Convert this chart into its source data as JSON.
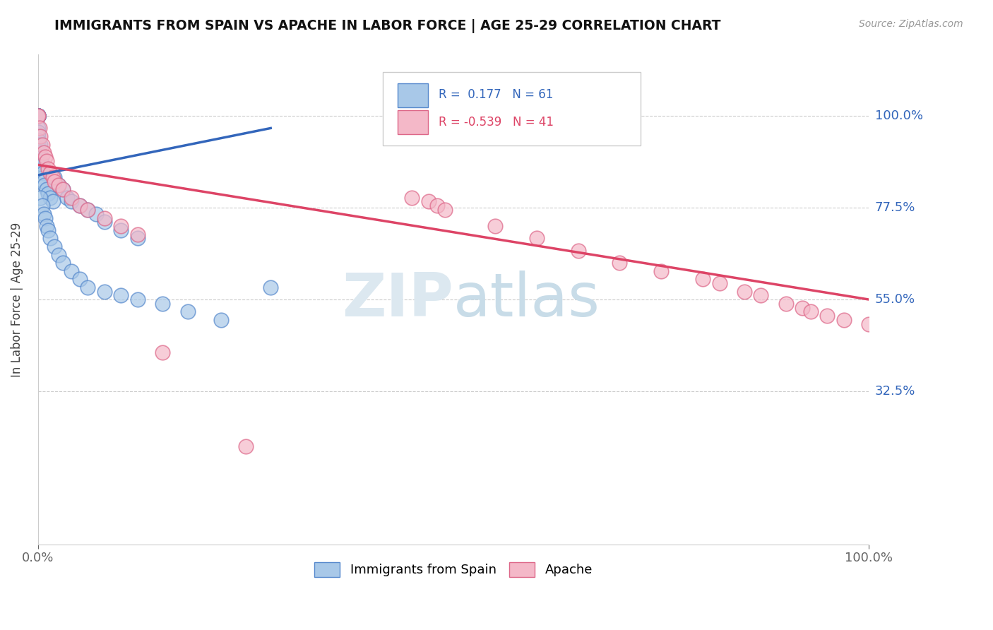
{
  "title": "IMMIGRANTS FROM SPAIN VS APACHE IN LABOR FORCE | AGE 25-29 CORRELATION CHART",
  "source": "Source: ZipAtlas.com",
  "ylabel": "In Labor Force | Age 25-29",
  "blue_R": 0.177,
  "blue_N": 61,
  "pink_R": -0.539,
  "pink_N": 41,
  "blue_color": "#a8c8e8",
  "pink_color": "#f4b8c8",
  "blue_edge_color": "#5588cc",
  "pink_edge_color": "#dd6688",
  "blue_line_color": "#3366bb",
  "pink_line_color": "#dd4466",
  "watermark_color": "#dce8f0",
  "legend_label_blue": "Immigrants from Spain",
  "legend_label_pink": "Apache",
  "grid_color": "#cccccc",
  "blue_scatter_x": [
    0.0,
    0.0,
    0.0,
    0.0,
    0.0,
    0.0,
    0.0,
    0.0,
    0.0,
    0.0,
    0.0,
    0.0,
    0.0,
    0.0,
    0.0,
    0.0,
    0.0,
    0.0,
    0.0,
    0.0,
    0.003,
    0.004,
    0.005,
    0.006,
    0.007,
    0.008,
    0.01,
    0.012,
    0.015,
    0.018,
    0.02,
    0.025,
    0.03,
    0.035,
    0.04,
    0.05,
    0.06,
    0.07,
    0.08,
    0.1,
    0.12,
    0.003,
    0.005,
    0.007,
    0.009,
    0.01,
    0.012,
    0.015,
    0.02,
    0.025,
    0.03,
    0.04,
    0.05,
    0.06,
    0.08,
    0.1,
    0.12,
    0.15,
    0.18,
    0.22,
    0.28
  ],
  "blue_scatter_y": [
    1.0,
    1.0,
    1.0,
    1.0,
    1.0,
    1.0,
    1.0,
    1.0,
    1.0,
    1.0,
    0.97,
    0.96,
    0.95,
    0.94,
    0.93,
    0.92,
    0.91,
    0.9,
    0.89,
    0.88,
    0.93,
    0.9,
    0.88,
    0.86,
    0.84,
    0.83,
    0.82,
    0.81,
    0.8,
    0.79,
    0.85,
    0.83,
    0.82,
    0.8,
    0.79,
    0.78,
    0.77,
    0.76,
    0.74,
    0.72,
    0.7,
    0.8,
    0.78,
    0.76,
    0.75,
    0.73,
    0.72,
    0.7,
    0.68,
    0.66,
    0.64,
    0.62,
    0.6,
    0.58,
    0.57,
    0.56,
    0.55,
    0.54,
    0.52,
    0.5,
    0.58
  ],
  "pink_scatter_x": [
    0.0,
    0.0,
    0.002,
    0.003,
    0.005,
    0.007,
    0.009,
    0.01,
    0.012,
    0.015,
    0.018,
    0.02,
    0.025,
    0.03,
    0.04,
    0.05,
    0.06,
    0.08,
    0.1,
    0.12,
    0.15,
    0.45,
    0.47,
    0.48,
    0.49,
    0.55,
    0.6,
    0.65,
    0.7,
    0.75,
    0.8,
    0.82,
    0.85,
    0.87,
    0.9,
    0.92,
    0.93,
    0.95,
    0.97,
    1.0,
    0.25
  ],
  "pink_scatter_y": [
    1.0,
    1.0,
    0.97,
    0.95,
    0.93,
    0.91,
    0.9,
    0.89,
    0.87,
    0.86,
    0.85,
    0.84,
    0.83,
    0.82,
    0.8,
    0.78,
    0.77,
    0.75,
    0.73,
    0.71,
    0.42,
    0.8,
    0.79,
    0.78,
    0.77,
    0.73,
    0.7,
    0.67,
    0.64,
    0.62,
    0.6,
    0.59,
    0.57,
    0.56,
    0.54,
    0.53,
    0.52,
    0.51,
    0.5,
    0.49,
    0.19
  ],
  "blue_line_x": [
    0.0,
    0.28
  ],
  "blue_line_y": [
    0.855,
    0.97
  ],
  "pink_line_x": [
    0.0,
    1.0
  ],
  "pink_line_y": [
    0.88,
    0.55
  ],
  "xlim": [
    0.0,
    1.0
  ],
  "ylim": [
    -0.05,
    1.15
  ],
  "ytick_vals": [
    1.0,
    0.775,
    0.55,
    0.325
  ],
  "ytick_labels": [
    "100.0%",
    "77.5%",
    "55.0%",
    "32.5%"
  ]
}
